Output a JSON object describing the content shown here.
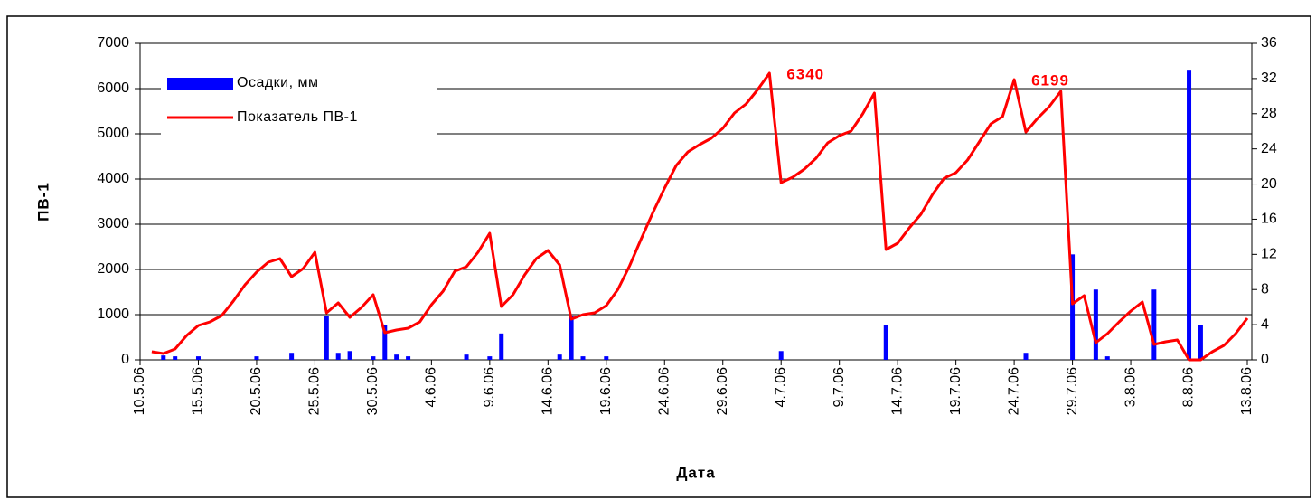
{
  "chart_data": {
    "type": "combo",
    "xlabel": "Дата",
    "ylabel": "ПВ-1",
    "legend": "upper left",
    "grid": true,
    "ylim": [
      0,
      7000
    ],
    "yticks": [
      0,
      1000,
      2000,
      3000,
      4000,
      5000,
      6000,
      7000
    ],
    "y2lim": [
      0,
      36
    ],
    "y2ticks": [
      0,
      4,
      8,
      12,
      16,
      20,
      24,
      28,
      32,
      36
    ],
    "categories": [
      "10.5.06",
      null,
      null,
      null,
      null,
      "15.5.06",
      null,
      null,
      null,
      null,
      "20.5.06",
      null,
      null,
      null,
      null,
      "25.5.06",
      null,
      null,
      null,
      null,
      "30.5.06",
      null,
      null,
      null,
      null,
      "4.6.06",
      null,
      null,
      null,
      null,
      "9.6.06",
      null,
      null,
      null,
      null,
      "14.6.06",
      null,
      null,
      null,
      null,
      "19.6.06",
      null,
      null,
      null,
      null,
      "24.6.06",
      null,
      null,
      null,
      null,
      "29.6.06",
      null,
      null,
      null,
      null,
      "4.7.06",
      null,
      null,
      null,
      null,
      "9.7.06",
      null,
      null,
      null,
      null,
      "14.7.06",
      null,
      null,
      null,
      null,
      "19.7.06",
      null,
      null,
      null,
      null,
      "24.7.06",
      null,
      null,
      null,
      null,
      "29.7.06",
      null,
      null,
      null,
      null,
      "3.8.06",
      null,
      null,
      null,
      null,
      "8.8.06",
      null,
      null,
      null,
      null,
      "13.8.06"
    ],
    "series": [
      {
        "name": "Осадки, мм",
        "type": "bar",
        "axis": "y2",
        "color": "#0000ff",
        "values": [
          0,
          0,
          0.5,
          0.4,
          0,
          0.4,
          0,
          0,
          0,
          0,
          0.4,
          0,
          0,
          0.8,
          0,
          0,
          5,
          0.8,
          1,
          0,
          0.4,
          4,
          0.6,
          0.4,
          0,
          0,
          0,
          0,
          0.6,
          0,
          0.4,
          3,
          0,
          0,
          0,
          0,
          0.6,
          5,
          0.4,
          0,
          0.4,
          0,
          0,
          0,
          0,
          0,
          0,
          0,
          0,
          0,
          0,
          0,
          0,
          0,
          0,
          1,
          0,
          0,
          0,
          0,
          0,
          0,
          0,
          0,
          4,
          0,
          0,
          0,
          0,
          0,
          0,
          0,
          0,
          0,
          0,
          0,
          0.8,
          0,
          0,
          0,
          12,
          0,
          8,
          0.4,
          0,
          0,
          0,
          8,
          0,
          0,
          33,
          4,
          0,
          0,
          0,
          0
        ]
      },
      {
        "name": "Показатель ПВ-1",
        "type": "line",
        "color": "#ff0000",
        "values": [
          null,
          180,
          140,
          240,
          540,
          760,
          840,
          980,
          1300,
          1660,
          1940,
          2160,
          2240,
          1840,
          2020,
          2380,
          1040,
          1260,
          940,
          1160,
          1440,
          600,
          660,
          700,
          840,
          1220,
          1520,
          1960,
          2060,
          2380,
          2800,
          1180,
          1440,
          1880,
          2240,
          2420,
          2100,
          900,
          1000,
          1040,
          1200,
          1560,
          2080,
          2680,
          3260,
          3800,
          4300,
          4600,
          4760,
          4900,
          5120,
          5460,
          5660,
          5980,
          6340,
          3920,
          4040,
          4220,
          4460,
          4800,
          4960,
          5060,
          5440,
          5900,
          2440,
          2580,
          2920,
          3220,
          3660,
          4020,
          4140,
          4420,
          4820,
          5220,
          5380,
          6199,
          5040,
          5340,
          5600,
          5940,
          1240,
          1420,
          380,
          580,
          840,
          1080,
          1280,
          340,
          400,
          440,
          0,
          0,
          180,
          320,
          580,
          920
        ],
        "value_labels": [
          null,
          null,
          null,
          null,
          null,
          null,
          null,
          null,
          null,
          null,
          null,
          null,
          null,
          null,
          null,
          null,
          null,
          null,
          null,
          null,
          null,
          null,
          null,
          null,
          null,
          null,
          null,
          null,
          null,
          null,
          null,
          null,
          null,
          null,
          null,
          null,
          null,
          null,
          null,
          null,
          null,
          null,
          null,
          null,
          null,
          null,
          null,
          null,
          null,
          null,
          null,
          null,
          null,
          null,
          "6340",
          null,
          null,
          null,
          null,
          null,
          null,
          null,
          null,
          null,
          null,
          null,
          null,
          null,
          null,
          null,
          null,
          null,
          null,
          null,
          null,
          "6199",
          null,
          null,
          null,
          null,
          null,
          null,
          null,
          null,
          null,
          null,
          null,
          null,
          null,
          null,
          null,
          null,
          null,
          null,
          null,
          null
        ]
      }
    ]
  }
}
